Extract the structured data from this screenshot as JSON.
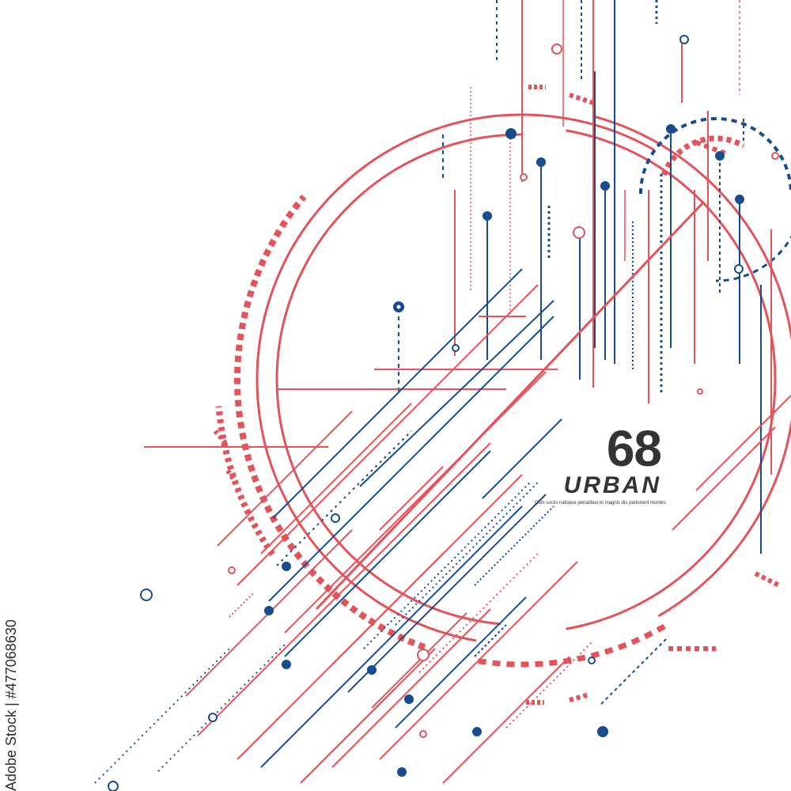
{
  "poster": {
    "number": "68",
    "word": "URBAN",
    "tagline": "Cum sociis natoque penatibus et magnis dis parturient montes"
  },
  "stock": {
    "id": "Adobe Stock | #477068630"
  },
  "colors": {
    "red": "#E2545A",
    "blue": "#174C8E",
    "text": "#333333",
    "background": "#FFFFFF"
  }
}
